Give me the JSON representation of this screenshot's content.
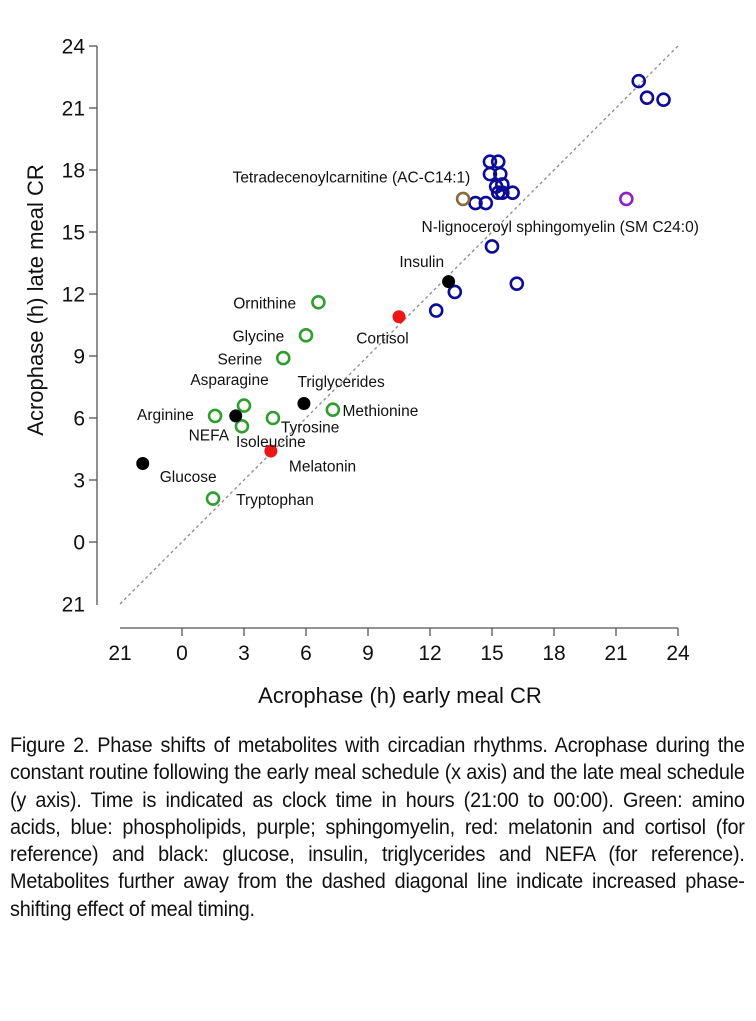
{
  "chart_data": {
    "type": "scatter",
    "title": "",
    "xlabel": "Acrophase (h) early meal CR",
    "ylabel": "Acrophase (h) late meal CR",
    "xlim": [
      -3,
      24
    ],
    "ylim": [
      -3,
      24
    ],
    "x_ticks": [
      {
        "value": -3,
        "label": "21"
      },
      {
        "value": 0,
        "label": "0"
      },
      {
        "value": 3,
        "label": "3"
      },
      {
        "value": 6,
        "label": "6"
      },
      {
        "value": 9,
        "label": "9"
      },
      {
        "value": 12,
        "label": "12"
      },
      {
        "value": 15,
        "label": "15"
      },
      {
        "value": 18,
        "label": "18"
      },
      {
        "value": 21,
        "label": "21"
      },
      {
        "value": 24,
        "label": "24"
      }
    ],
    "y_ticks": [
      {
        "value": -3,
        "label": "21"
      },
      {
        "value": 0,
        "label": "0"
      },
      {
        "value": 3,
        "label": "3"
      },
      {
        "value": 6,
        "label": "6"
      },
      {
        "value": 9,
        "label": "9"
      },
      {
        "value": 12,
        "label": "12"
      },
      {
        "value": 15,
        "label": "15"
      },
      {
        "value": 18,
        "label": "18"
      },
      {
        "value": 21,
        "label": "21"
      },
      {
        "value": 24,
        "label": "24"
      }
    ],
    "grid": false,
    "legend": "none",
    "reference_line": {
      "type": "identity",
      "style": "dashed",
      "from": [
        -3,
        -3
      ],
      "to": [
        24,
        24
      ]
    },
    "colors": {
      "amino_acids": "#2f9e2f",
      "phospholipids": "#0c0c96",
      "sphingomyelin": "#8e22c2",
      "acylcarnitine": "#8b6a3a",
      "reference_red": "#ee1515",
      "reference_black": "#000000"
    },
    "series": [
      {
        "name": "Amino acids",
        "color_key": "amino_acids",
        "marker": "open-circle",
        "points": [
          {
            "label": "Tryptophan",
            "x": 1.5,
            "y": 2.1
          },
          {
            "label": "Arginine",
            "x": 1.6,
            "y": 6.1
          },
          {
            "label": "Asparagine",
            "x": 3.0,
            "y": 6.6
          },
          {
            "label": "Isoleucine",
            "x": 2.9,
            "y": 5.6
          },
          {
            "label": "Tyrosine",
            "x": 4.4,
            "y": 6.0
          },
          {
            "label": "Serine",
            "x": 4.9,
            "y": 8.9
          },
          {
            "label": "Glycine",
            "x": 6.0,
            "y": 10.0
          },
          {
            "label": "Ornithine",
            "x": 6.6,
            "y": 11.6
          },
          {
            "label": "Methionine",
            "x": 7.3,
            "y": 6.4
          }
        ]
      },
      {
        "name": "Phospholipids",
        "color_key": "phospholipids",
        "marker": "open-circle",
        "points": [
          {
            "label": "",
            "x": 12.3,
            "y": 11.2
          },
          {
            "label": "",
            "x": 13.2,
            "y": 12.1
          },
          {
            "label": "",
            "x": 16.2,
            "y": 12.5
          },
          {
            "label": "",
            "x": 15.0,
            "y": 14.3
          },
          {
            "label": "",
            "x": 14.2,
            "y": 16.4
          },
          {
            "label": "",
            "x": 14.7,
            "y": 16.4
          },
          {
            "label": "",
            "x": 14.9,
            "y": 18.4
          },
          {
            "label": "",
            "x": 15.3,
            "y": 18.4
          },
          {
            "label": "",
            "x": 14.9,
            "y": 17.8
          },
          {
            "label": "",
            "x": 15.4,
            "y": 17.8
          },
          {
            "label": "",
            "x": 15.5,
            "y": 17.3
          },
          {
            "label": "",
            "x": 15.2,
            "y": 17.2
          },
          {
            "label": "",
            "x": 15.3,
            "y": 16.9
          },
          {
            "label": "",
            "x": 15.5,
            "y": 16.9
          },
          {
            "label": "",
            "x": 16.0,
            "y": 16.9
          },
          {
            "label": "",
            "x": 22.1,
            "y": 22.3
          },
          {
            "label": "",
            "x": 22.5,
            "y": 21.5
          },
          {
            "label": "",
            "x": 23.3,
            "y": 21.4
          }
        ]
      },
      {
        "name": "Sphingomyelin",
        "color_key": "sphingomyelin",
        "marker": "open-circle",
        "points": [
          {
            "label": "N-lignoceroyl sphingomyelin (SM C24:0)",
            "x": 21.5,
            "y": 16.6
          }
        ]
      },
      {
        "name": "Acylcarnitine",
        "color_key": "acylcarnitine",
        "marker": "open-circle",
        "points": [
          {
            "label": "Tetradecenoylcarnitine (AC-C14:1)",
            "x": 13.6,
            "y": 16.6
          }
        ]
      },
      {
        "name": "Melatonin and cortisol (reference)",
        "color_key": "reference_red",
        "marker": "filled-circle",
        "points": [
          {
            "label": "Melatonin",
            "x": 4.3,
            "y": 4.4
          },
          {
            "label": "Cortisol",
            "x": 10.5,
            "y": 10.9
          }
        ]
      },
      {
        "name": "Glucose, insulin, triglycerides and NEFA (reference)",
        "color_key": "reference_black",
        "marker": "filled-circle",
        "points": [
          {
            "label": "Glucose",
            "x": -1.9,
            "y": 3.8
          },
          {
            "label": "NEFA",
            "x": 2.6,
            "y": 6.1
          },
          {
            "label": "Triglycerides",
            "x": 5.9,
            "y": 6.7
          },
          {
            "label": "Insulin",
            "x": 12.9,
            "y": 12.6
          }
        ]
      }
    ],
    "annotations": [
      {
        "text": "Tetradecenoylcarnitine (AC-C14:1)",
        "at": [
          8.2,
          17.4
        ],
        "anchor": "middle"
      },
      {
        "text": "N-lignoceroyl sphingomyelin (SM C24:0)",
        "at": [
          18.3,
          15.0
        ],
        "anchor": "middle"
      },
      {
        "text": "Insulin",
        "at": [
          11.6,
          13.3
        ],
        "anchor": "middle"
      },
      {
        "text": "Cortisol",
        "at": [
          9.7,
          9.6
        ],
        "anchor": "middle"
      },
      {
        "text": "Ornithine",
        "at": [
          4.0,
          11.3
        ],
        "anchor": "middle"
      },
      {
        "text": "Glycine",
        "at": [
          3.7,
          9.7
        ],
        "anchor": "middle"
      },
      {
        "text": "Serine",
        "at": [
          2.8,
          8.6
        ],
        "anchor": "middle"
      },
      {
        "text": "Asparagine",
        "at": [
          2.3,
          7.6
        ],
        "anchor": "middle"
      },
      {
        "text": "Triglycerides",
        "at": [
          7.7,
          7.5
        ],
        "anchor": "middle"
      },
      {
        "text": "Arginine",
        "at": [
          -0.8,
          5.9
        ],
        "anchor": "middle"
      },
      {
        "text": "Methionine",
        "at": [
          9.6,
          6.1
        ],
        "anchor": "middle"
      },
      {
        "text": "Tyrosine",
        "at": [
          6.2,
          5.3
        ],
        "anchor": "middle"
      },
      {
        "text": "NEFA",
        "at": [
          1.3,
          4.9
        ],
        "anchor": "middle"
      },
      {
        "text": "Isoleucine",
        "at": [
          4.3,
          4.6
        ],
        "anchor": "middle"
      },
      {
        "text": "Melatonin",
        "at": [
          6.8,
          3.4
        ],
        "anchor": "middle"
      },
      {
        "text": "Glucose",
        "at": [
          0.3,
          2.9
        ],
        "anchor": "middle"
      },
      {
        "text": "Tryptophan",
        "at": [
          4.5,
          1.8
        ],
        "anchor": "middle"
      }
    ]
  },
  "caption": {
    "text": "Figure 2.  Phase shifts of metabolites with circadian rhythms. Acrophase during the constant routine following the early meal schedule (x axis) and the late meal schedule (y axis). Time is indicated as clock time in hours (21:00 to 00:00).  Green: amino acids, blue: phospholipids, purple; sphingomyelin, red: melatonin and cortisol (for reference) and black: glucose, insulin, triglycerides and NEFA (for reference). Metabolites further away from the dashed diagonal line indicate increased phase-shifting effect of meal timing."
  }
}
